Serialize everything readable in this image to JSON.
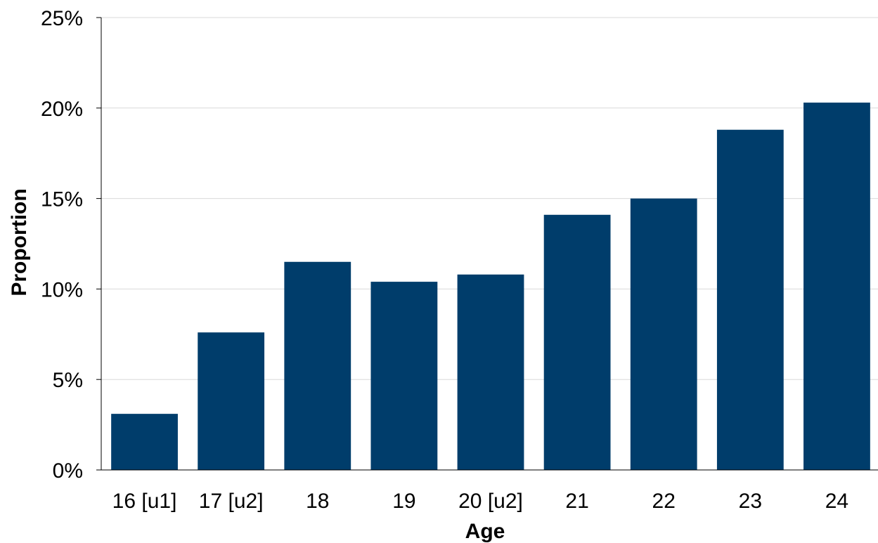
{
  "chart_data": {
    "type": "bar",
    "xlabel": "Age",
    "ylabel": "Proportion",
    "categories": [
      "16 [u1]",
      "17 [u2]",
      "18",
      "19",
      "20 [u2]",
      "21",
      "22",
      "23",
      "24"
    ],
    "values": [
      3.1,
      7.6,
      11.5,
      10.4,
      10.8,
      14.1,
      15.0,
      18.8,
      20.3
    ],
    "ylim": [
      0,
      25
    ],
    "yticks": [
      0,
      5,
      10,
      15,
      20,
      25
    ],
    "ytick_labels": [
      "0%",
      "5%",
      "10%",
      "15%",
      "20%",
      "25%"
    ],
    "grid": true,
    "legend": "none",
    "bar_color": "#003d6b"
  }
}
